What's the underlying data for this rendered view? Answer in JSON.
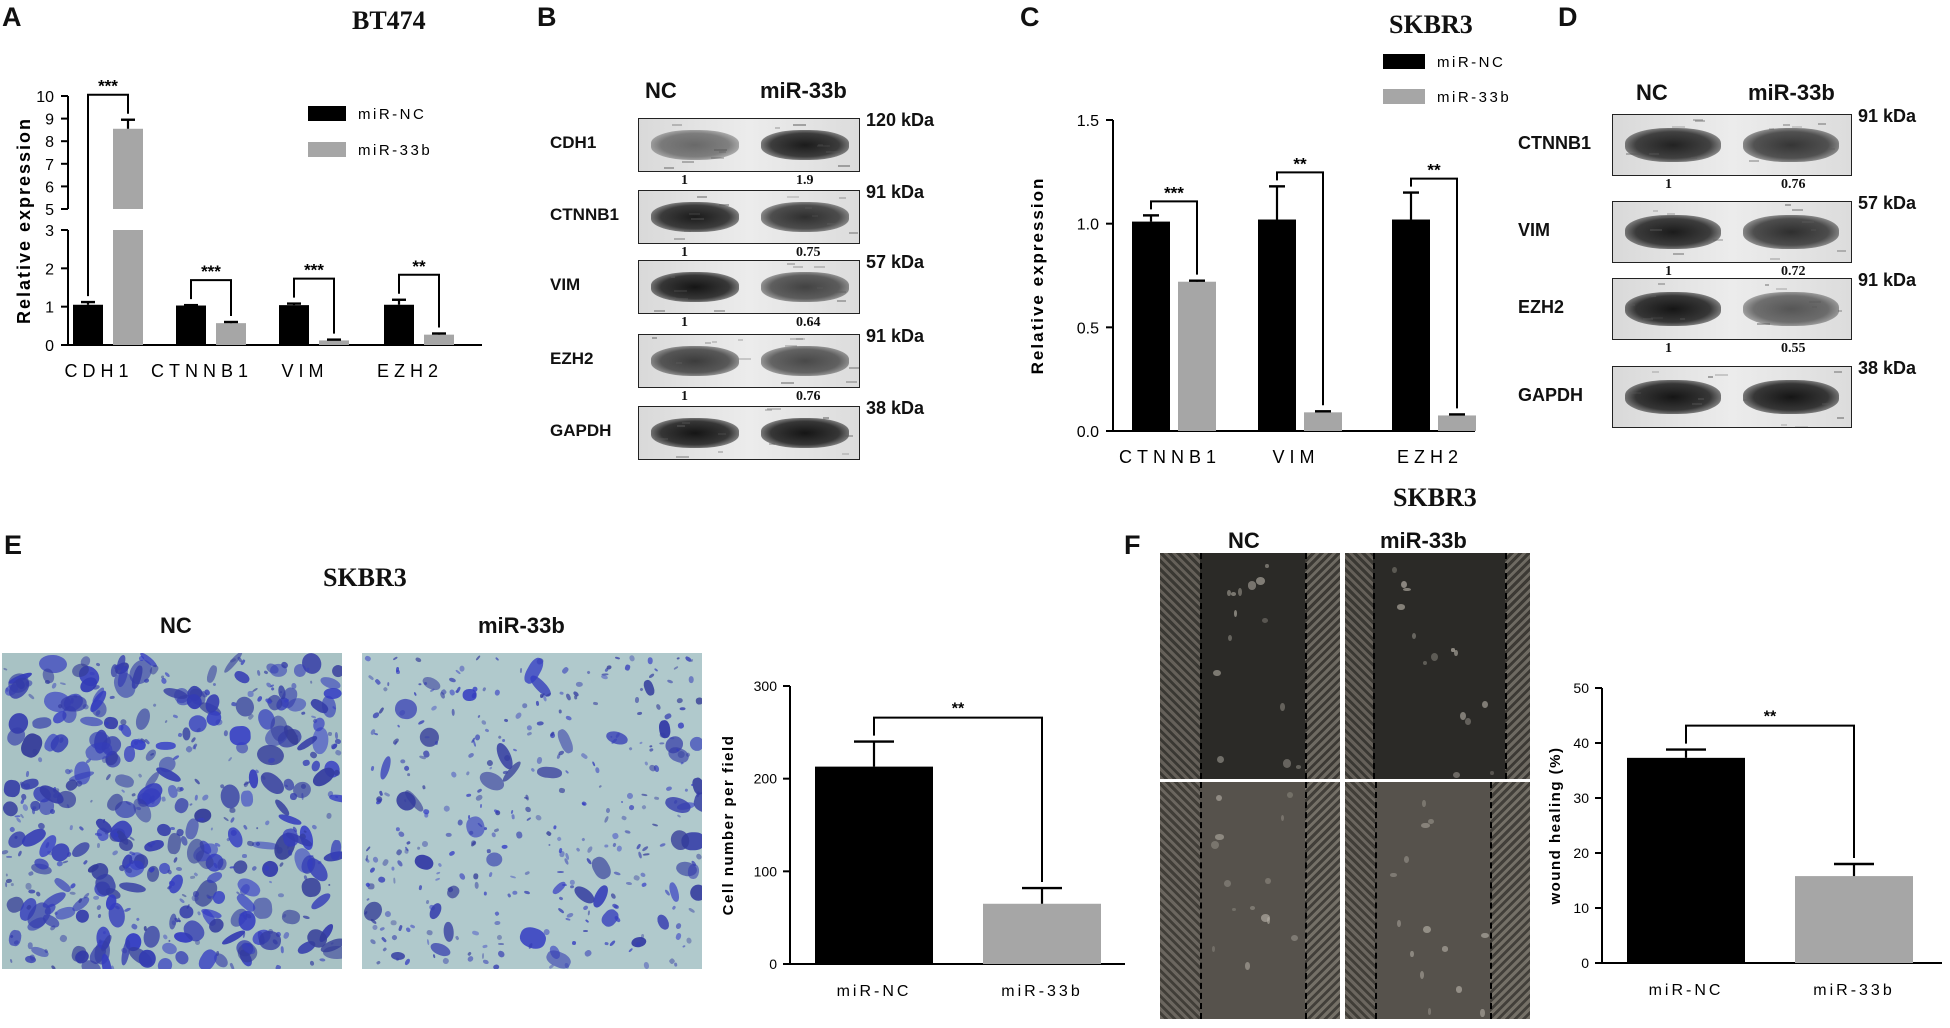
{
  "panels": {
    "A": {
      "letter": "A",
      "title": "BT474",
      "chart_data": {
        "type": "bar",
        "categories": [
          "CDH1",
          "CTNNB1",
          "VIM",
          "EZH2"
        ],
        "series": [
          {
            "name": "miR-NC",
            "values": [
              1.05,
              1.03,
              1.04,
              1.05
            ],
            "errors": [
              0.07,
              0.01,
              0.04,
              0.13
            ]
          },
          {
            "name": "miR-33b",
            "values": [
              8.55,
              0.57,
              0.12,
              0.27
            ],
            "errors": [
              0.4,
              0.03,
              0.02,
              0.03
            ]
          }
        ],
        "significance": [
          "***",
          "***",
          "***",
          "**"
        ],
        "ylabel": "Relative expression",
        "ylim": [
          0,
          10
        ],
        "axis_break": [
          3,
          5
        ],
        "yticks": [
          "0",
          "1",
          "2",
          "3",
          "5",
          "6",
          "7",
          "8",
          "9",
          "10"
        ],
        "legend": [
          "miR-NC",
          "miR-33b"
        ],
        "legend_position": "top-right"
      }
    },
    "B": {
      "letter": "B",
      "columns": [
        "NC",
        "miR-33b"
      ],
      "blots": [
        {
          "name": "CDH1",
          "size": "120 kDa",
          "ratios": [
            "1",
            "1.9"
          ]
        },
        {
          "name": "CTNNB1",
          "size": "91 kDa",
          "ratios": [
            "1",
            "0.75"
          ]
        },
        {
          "name": "VIM",
          "size": "57 kDa",
          "ratios": [
            "1",
            "0.64"
          ]
        },
        {
          "name": "EZH2",
          "size": "91 kDa",
          "ratios": [
            "1",
            "0.76"
          ]
        },
        {
          "name": "GAPDH",
          "size": "38 kDa",
          "ratios": []
        }
      ]
    },
    "C": {
      "letter": "C",
      "title": "SKBR3",
      "chart_data": {
        "type": "bar",
        "categories": [
          "CTNNB1",
          "VIM",
          "EZH2"
        ],
        "series": [
          {
            "name": "miR-NC",
            "values": [
              1.01,
              1.02,
              1.02
            ],
            "errors": [
              0.03,
              0.16,
              0.13
            ]
          },
          {
            "name": "miR-33b",
            "values": [
              0.72,
              0.09,
              0.075
            ],
            "errors": [
              0.005,
              0.005,
              0.005
            ]
          }
        ],
        "significance": [
          "***",
          "**",
          "**"
        ],
        "ylabel": "Relative expression",
        "ylim": [
          0,
          1.5
        ],
        "yticks": [
          "0.0",
          "0.5",
          "1.0",
          "1.5"
        ],
        "legend": [
          "miR-NC",
          "miR-33b"
        ],
        "legend_position": "top-right"
      }
    },
    "D": {
      "letter": "D",
      "columns": [
        "NC",
        "miR-33b"
      ],
      "blots": [
        {
          "name": "CTNNB1",
          "size": "91 kDa",
          "ratios": [
            "1",
            "0.76"
          ]
        },
        {
          "name": "VIM",
          "size": "57 kDa",
          "ratios": [
            "1",
            "0.72"
          ]
        },
        {
          "name": "EZH2",
          "size": "91 kDa",
          "ratios": [
            "1",
            "0.55"
          ]
        },
        {
          "name": "GAPDH",
          "size": "38 kDa",
          "ratios": []
        }
      ]
    },
    "E": {
      "letter": "E",
      "title": "SKBR3",
      "image_labels": [
        "NC",
        "miR-33b"
      ],
      "chart_data": {
        "type": "bar",
        "categories": [
          "miR-NC",
          "miR-33b"
        ],
        "values": [
          213,
          65
        ],
        "errors": [
          27,
          17
        ],
        "colors": [
          "#000000",
          "#a6a6a6"
        ],
        "significance": "**",
        "ylabel": "Cell number per field",
        "ylim": [
          0,
          300
        ],
        "yticks": [
          "0",
          "100",
          "200",
          "300"
        ]
      }
    },
    "F": {
      "letter": "F",
      "title": "SKBR3",
      "image_labels": [
        "NC",
        "miR-33b"
      ],
      "chart_data": {
        "type": "bar",
        "categories": [
          "miR-NC",
          "miR-33b"
        ],
        "values": [
          37.3,
          15.8
        ],
        "errors": [
          1.5,
          2.2
        ],
        "colors": [
          "#000000",
          "#a6a6a6"
        ],
        "significance": "**",
        "ylabel": "wound healing (%)",
        "ylim": [
          0,
          50
        ],
        "yticks": [
          "0",
          "10",
          "20",
          "30",
          "40",
          "50"
        ]
      }
    }
  },
  "colors": {
    "nc": "#000000",
    "mir33b": "#a6a6a6",
    "stain": "#3b4cb0",
    "wound": "#2b2a27"
  }
}
